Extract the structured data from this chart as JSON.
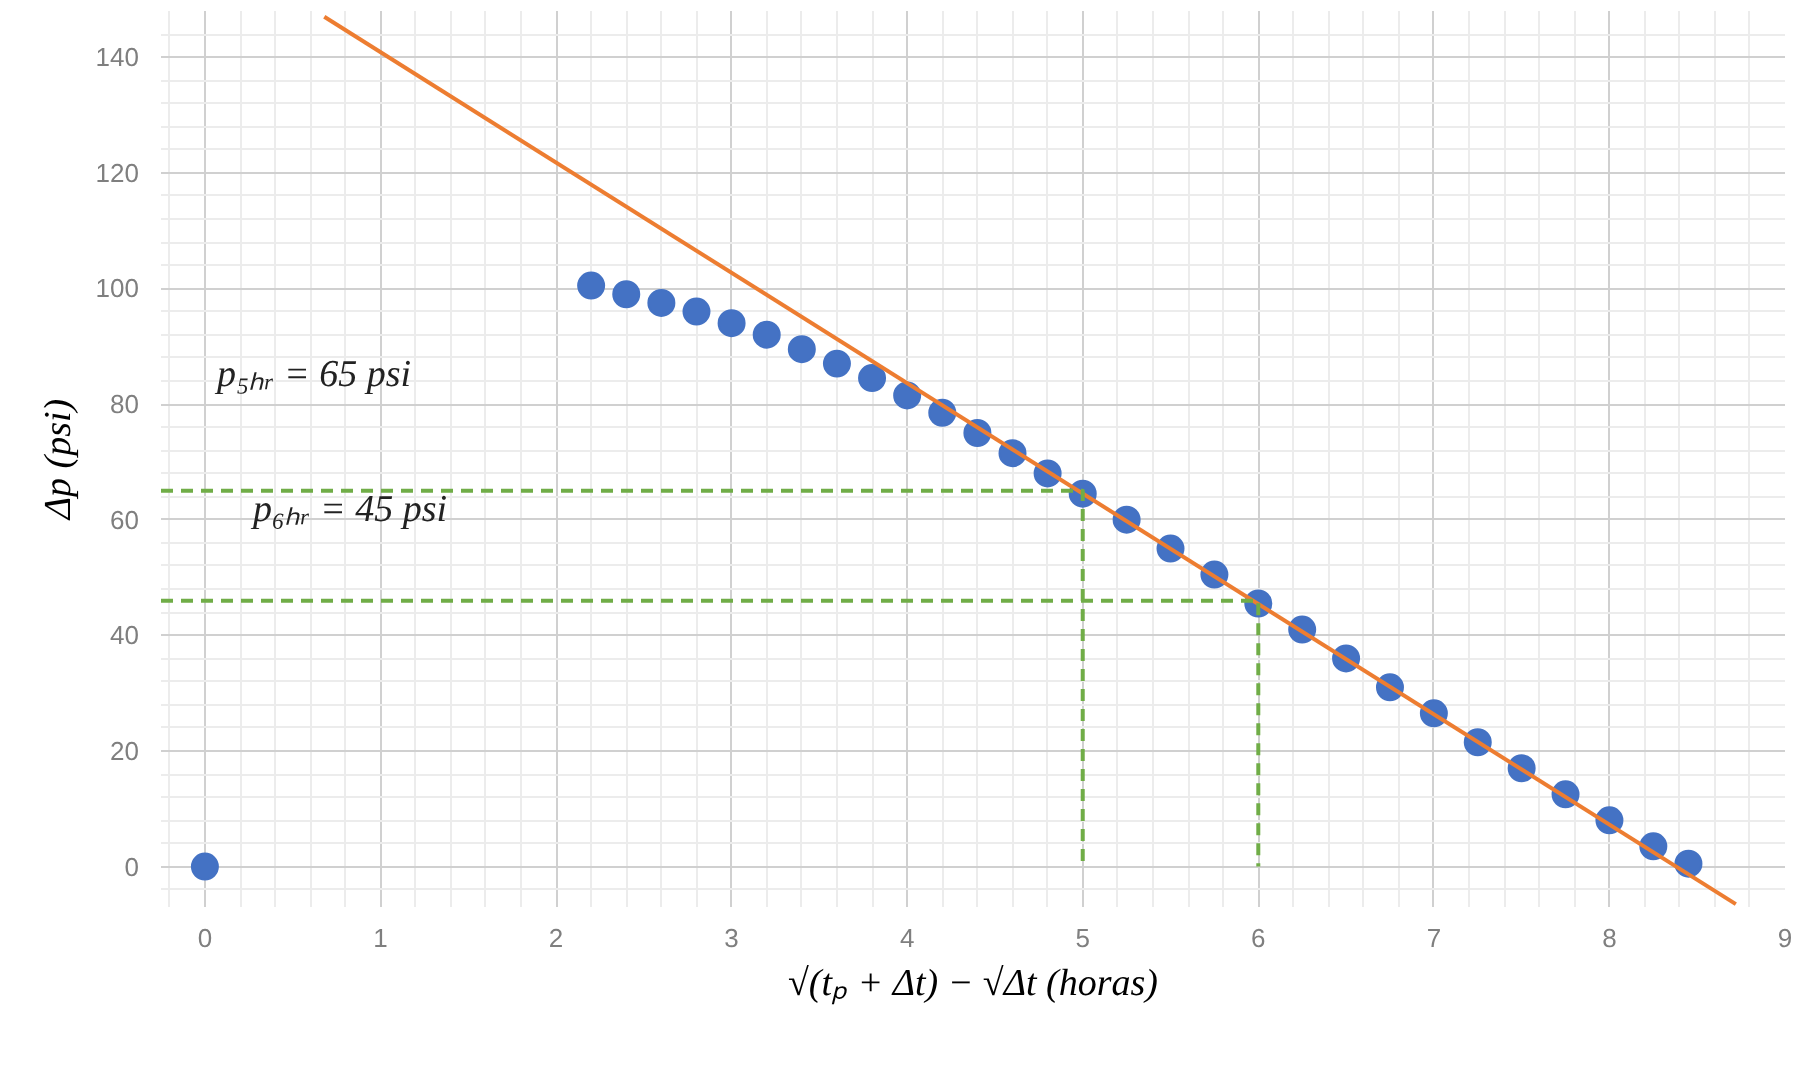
{
  "chart_data": {
    "type": "scatter",
    "xlabel": "√(tₚ + Δt) − √Δt (horas)",
    "ylabel": "Δp (psi)",
    "xlim": [
      -0.25,
      9
    ],
    "ylim": [
      -7,
      148
    ],
    "xticks": [
      0,
      1,
      2,
      3,
      4,
      5,
      6,
      7,
      8,
      9
    ],
    "yticks": [
      0,
      20,
      40,
      60,
      80,
      100,
      120,
      140
    ],
    "grid": true,
    "series": [
      {
        "marker": "circle",
        "color": "#4472c4",
        "x": [
          0,
          2.2,
          2.4,
          2.6,
          2.8,
          3.0,
          3.2,
          3.4,
          3.6,
          3.8,
          4.0,
          4.2,
          4.4,
          4.6,
          4.8,
          5.0,
          5.25,
          5.5,
          5.75,
          6.0,
          6.25,
          6.5,
          6.75,
          7.0,
          7.25,
          7.5,
          7.75,
          8.0,
          8.25,
          8.45
        ],
        "values": [
          0,
          100.5,
          99,
          97.5,
          96,
          94,
          92,
          89.5,
          87,
          84.5,
          81.5,
          78.5,
          75,
          71.5,
          68,
          64.5,
          60,
          55,
          50.5,
          45.5,
          41,
          36,
          31,
          26.5,
          21.5,
          17,
          12.5,
          8,
          3.5,
          0.5
        ]
      },
      {
        "type": "line",
        "color": "#ed7d31",
        "x": [
          0.68,
          8.72
        ],
        "values": [
          147,
          -6.5
        ],
        "line_style": "solid"
      },
      {
        "type": "line",
        "color": "#70ad47",
        "x": [
          -0.25,
          5,
          5
        ],
        "values": [
          65,
          65,
          0
        ],
        "line_style": "dashed"
      },
      {
        "type": "line",
        "color": "#70ad47",
        "x": [
          -0.25,
          6,
          6
        ],
        "values": [
          46,
          46,
          0
        ],
        "line_style": "dashed"
      }
    ],
    "annotations": [
      "p₅ₕᵣ = 65 psi",
      "p₆ₕᵣ = 45 psi"
    ]
  }
}
